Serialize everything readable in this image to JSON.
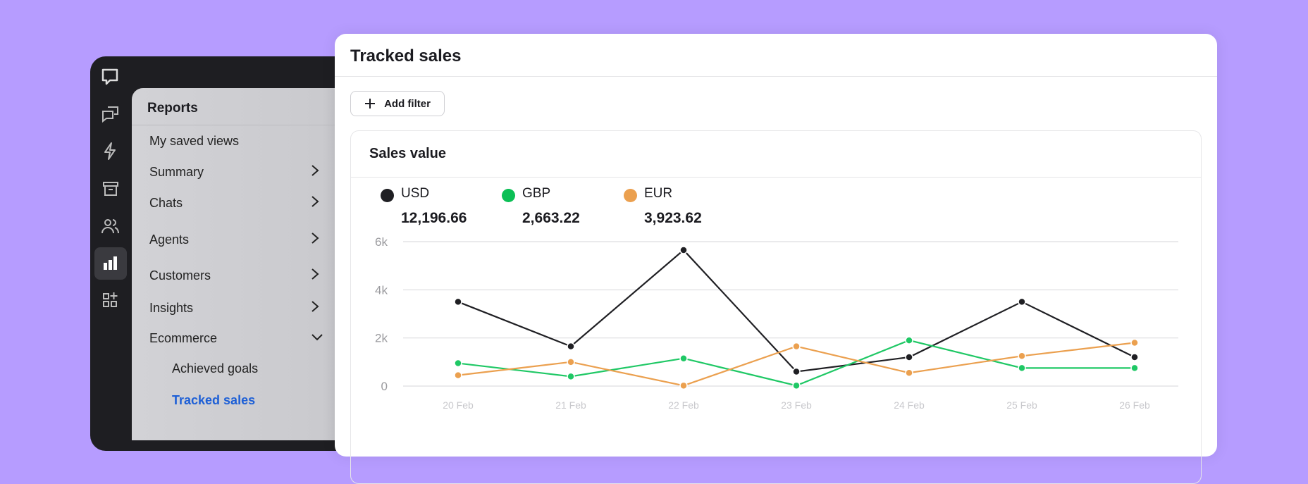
{
  "sidebar": {
    "rail_icons": [
      "chat-bubble-icon",
      "chats-icon",
      "lightning-icon",
      "archive-icon",
      "people-icon",
      "reports-icon",
      "apps-add-icon"
    ],
    "active_rail": "reports-icon",
    "title": "Reports",
    "items": [
      {
        "label": "My saved views",
        "chevron": ""
      },
      {
        "label": "Summary",
        "chevron": "right"
      },
      {
        "label": "Chats",
        "chevron": "right"
      },
      {
        "label": "Agents",
        "chevron": "right"
      },
      {
        "label": "Customers",
        "chevron": "right"
      },
      {
        "label": "Insights",
        "chevron": "right"
      },
      {
        "label": "Ecommerce",
        "chevron": "down"
      }
    ],
    "sub_items": [
      {
        "label": "Achieved goals",
        "selected": false
      },
      {
        "label": "Tracked sales",
        "selected": true
      }
    ]
  },
  "main": {
    "title": "Tracked sales",
    "add_filter_label": "Add filter",
    "card_title": "Sales value",
    "legend": [
      {
        "label": "USD",
        "value": "12,196.66",
        "color": "#1f1f23"
      },
      {
        "label": "GBP",
        "value": "2,663.22",
        "color": "#0bbf55"
      },
      {
        "label": "EUR",
        "value": "3,923.62",
        "color": "#eba04f"
      }
    ]
  },
  "chart_data": {
    "type": "line",
    "categories": [
      "20 Feb",
      "21 Feb",
      "22 Feb",
      "23 Feb",
      "24 Feb",
      "25 Feb",
      "26 Feb"
    ],
    "y_ticks": [
      "0",
      "2k",
      "4k",
      "6k"
    ],
    "ylim": [
      0,
      6000
    ],
    "grid": true,
    "series": [
      {
        "name": "USD",
        "color": "#1f1f23",
        "values": [
          3500,
          1650,
          5650,
          600,
          1200,
          3500,
          1200
        ]
      },
      {
        "name": "GBP",
        "color": "#1fc865",
        "values": [
          950,
          400,
          1150,
          20,
          1900,
          750,
          750
        ]
      },
      {
        "name": "EUR",
        "color": "#eba04f",
        "values": [
          450,
          1000,
          20,
          1650,
          550,
          1250,
          1800
        ]
      }
    ]
  }
}
